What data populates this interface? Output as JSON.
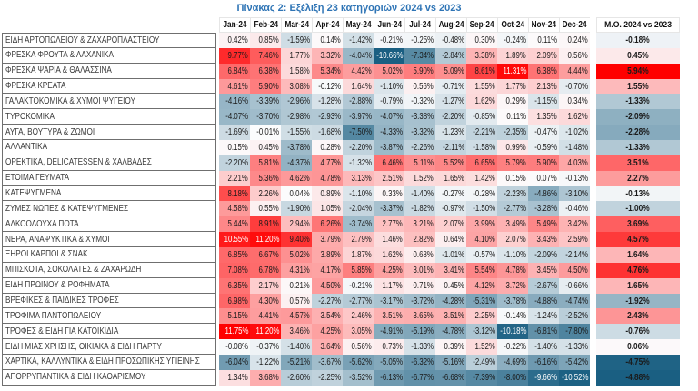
{
  "title": "Πίνακας 2: Εξέλιξη 23 κατηγοριών 2024 vs 2023",
  "chart_data": {
    "type": "heatmap",
    "title": "Πίνακας 2: Εξέλιξη 23 κατηγοριών 2024 vs 2023",
    "title_color": "#2E74B5",
    "value_format": "percent_2dp",
    "columns": [
      "Jan-24",
      "Feb-24",
      "Mar-24",
      "Apr-24",
      "May-24",
      "Jun-24",
      "Jul-24",
      "Aug-24",
      "Sep-24",
      "Oct-24",
      "Nov-24",
      "Dec-24"
    ],
    "avg_column_label": "Μ.Ο. 2024 vs 2023",
    "color_scale": {
      "positive_color": "#FF0000",
      "negative_color": "#1A5F82",
      "neutral_color": "#FCFCFD",
      "monthly": {
        "min": -10.66,
        "max": 11.75
      },
      "avg": {
        "min": -4.88,
        "max": 5.94
      }
    },
    "rows": [
      {
        "label": "ΕΙΔΗ ΑΡΤΟΠΩΛΕΙΟΥ & ΖΑΧΑΡΟΠΛΑΣΤΕΙΟΥ",
        "values": [
          0.42,
          0.85,
          -1.59,
          0.14,
          -1.42,
          -0.21,
          -0.25,
          -0.48,
          0.3,
          -0.24,
          0.11,
          0.24
        ],
        "avg": -0.18
      },
      {
        "label": "ΦΡΕΣΚΑ ΦΡΟΥΤΑ & ΛΑΧΑΝΙΚΑ",
        "values": [
          9.77,
          7.46,
          1.77,
          3.32,
          -4.04,
          -10.66,
          -7.34,
          -2.84,
          3.38,
          1.89,
          2.09,
          0.56
        ],
        "avg": 0.45
      },
      {
        "label": "ΦΡΕΣΚΑ ΨΑΡΙΑ & ΘΑΛΑΣΣΙΝΑ",
        "values": [
          6.84,
          6.38,
          1.58,
          5.34,
          4.42,
          5.02,
          5.9,
          5.09,
          8.61,
          11.31,
          6.38,
          4.44
        ],
        "avg": 5.94
      },
      {
        "label": "ΦΡΕΣΚΑ ΚΡΕΑΤΑ",
        "values": [
          4.61,
          5.9,
          3.08,
          -0.12,
          1.64,
          -1.1,
          0.56,
          -0.71,
          1.55,
          1.77,
          2.13,
          -0.7
        ],
        "avg": 1.55
      },
      {
        "label": "ΓΑΛΑΚΤΟΚΟΜΙΚΑ & ΧΥΜΟΙ ΨΥΓΕΙΟΥ",
        "values": [
          -4.16,
          -3.39,
          -2.96,
          -1.28,
          -2.88,
          -0.79,
          -0.32,
          -1.27,
          1.62,
          0.29,
          -1.15,
          0.34
        ],
        "avg": -1.33
      },
      {
        "label": "ΤΥΡΟΚΟΜΙΚΑ",
        "values": [
          -4.07,
          -3.7,
          -2.98,
          -2.93,
          -3.97,
          -4.07,
          -3.38,
          -2.2,
          -0.85,
          0.11,
          1.35,
          1.62
        ],
        "avg": -2.09
      },
      {
        "label": "ΑΥΓΑ, ΒΟΥΤΥΡΑ & ΖΩΜΟΙ",
        "values": [
          -1.69,
          -0.01,
          -1.55,
          -1.68,
          -7.5,
          -4.33,
          -3.32,
          -1.23,
          -2.21,
          -2.35,
          -0.47,
          -1.02
        ],
        "avg": -2.28
      },
      {
        "label": "ΑΛΛΑΝΤΙΚΑ",
        "values": [
          0.15,
          0.45,
          -3.78,
          0.28,
          -2.2,
          -3.87,
          -2.26,
          -2.11,
          -1.58,
          0.99,
          -0.59,
          -1.48
        ],
        "avg": -1.33
      },
      {
        "label": "ΟΡΕΚΤΙΚΑ, DELICATESSEN & ΧΑΛΒΑΔΕΣ",
        "values": [
          -2.2,
          5.81,
          -4.37,
          4.77,
          -1.32,
          6.46,
          5.11,
          5.52,
          6.65,
          5.79,
          5.9,
          4.03
        ],
        "avg": 3.51
      },
      {
        "label": "ΕΤΟΙΜΑ ΓΕΥΜΑΤΑ",
        "values": [
          2.21,
          5.36,
          4.62,
          4.78,
          3.13,
          2.51,
          1.52,
          1.65,
          1.42,
          0.15,
          0.07,
          -0.13
        ],
        "avg": 2.27
      },
      {
        "label": "ΚΑΤΕΨΥΓΜΕΝΑ",
        "values": [
          8.18,
          2.26,
          0.04,
          0.89,
          -1.1,
          0.33,
          -1.4,
          -0.27,
          -0.28,
          -2.23,
          -4.86,
          -3.1
        ],
        "avg": -0.13
      },
      {
        "label": "ΖΥΜΕΣ ΝΩΠΕΣ & ΚΑΤΕΨΥΓΜΕΝΕΣ",
        "values": [
          4.58,
          0.55,
          -1.9,
          1.05,
          -2.04,
          -3.37,
          -1.82,
          -0.97,
          -1.5,
          -2.77,
          -3.28,
          -0.46
        ],
        "avg": -1.0
      },
      {
        "label": "ΑΛΚΟΟΛΟΥΧΑ ΠΟΤΑ",
        "values": [
          5.44,
          8.91,
          2.94,
          6.26,
          -3.74,
          2.77,
          3.21,
          2.07,
          3.99,
          3.49,
          5.49,
          3.42
        ],
        "avg": 3.69
      },
      {
        "label": "ΝΕΡΑ, ΑΝΑΨΥΚΤΙΚΑ & ΧΥΜΟΙ",
        "values": [
          10.55,
          11.2,
          9.4,
          3.79,
          2.79,
          1.46,
          2.82,
          0.64,
          4.1,
          2.07,
          3.43,
          2.59
        ],
        "avg": 4.57
      },
      {
        "label": "ΞΗΡΟΙ ΚΑΡΠΟΙ & ΣΝΑΚ",
        "values": [
          6.85,
          6.67,
          5.02,
          3.89,
          1.87,
          1.62,
          0.68,
          -1.01,
          -0.57,
          -1.1,
          -2.09,
          -2.14
        ],
        "avg": 1.64
      },
      {
        "label": "ΜΠΙΣΚΟΤΑ, ΣΟΚΟΛΑΤΕΣ & ΖΑΧΑΡΩΔΗ",
        "values": [
          7.08,
          6.78,
          4.31,
          4.17,
          5.85,
          4.25,
          3.01,
          3.41,
          5.54,
          4.78,
          3.45,
          4.5
        ],
        "avg": 4.76
      },
      {
        "label": "ΕΙΔΗ ΠΡΩΙΝΟΥ & ΡΟΦΗΜΑΤΑ",
        "values": [
          6.35,
          2.17,
          0.21,
          4.5,
          -0.21,
          1.17,
          0.71,
          0.45,
          4.12,
          3.72,
          -2.67,
          -0.66
        ],
        "avg": 1.65
      },
      {
        "label": "ΒΡΕΦΙΚΕΣ & ΠΑΙΔΙΚΕΣ ΤΡΟΦΕΣ",
        "values": [
          6.98,
          4.3,
          0.57,
          -2.27,
          -2.77,
          -3.17,
          -3.72,
          -4.28,
          -5.31,
          -3.78,
          -4.88,
          -4.74
        ],
        "avg": -1.92
      },
      {
        "label": "ΤΡΟΦΙΜΑ ΠΑΝΤΟΠΩΛΕΙΟΥ",
        "values": [
          5.15,
          4.41,
          4.57,
          3.54,
          2.46,
          3.51,
          3.65,
          3.51,
          2.25,
          -0.14,
          -1.24,
          -2.52
        ],
        "avg": 2.43
      },
      {
        "label": "ΤΡΟΦΕΣ & ΕΙΔΗ ΓΙΑ ΚΑΤΟΙΚΙΔΙΑ",
        "values": [
          11.75,
          11.2,
          3.46,
          4.25,
          3.05,
          -4.91,
          -5.19,
          -4.78,
          -3.12,
          -10.18,
          -6.81,
          -7.8
        ],
        "avg": -0.76
      },
      {
        "label": "ΕΙΔΗ ΜΙΑΣ ΧΡΗΣΗΣ, ΟΙΚΙΑΚΑ & ΕΙΔΗ ΠΑΡΤΥ",
        "values": [
          -0.08,
          -0.37,
          -1.4,
          3.64,
          0.56,
          0.73,
          -1.33,
          0.39,
          1.52,
          -0.22,
          -1.4,
          -1.33
        ],
        "avg": 0.06
      },
      {
        "label": "ΧΑΡΤΙΚΑ, ΚΑΛΛΥΝΤΙΚΑ & ΕΙΔΗ ΠΡΟΣΩΠΙΚΗΣ ΥΓΙΕΙΝΗΣ",
        "values": [
          -6.04,
          -1.22,
          -5.21,
          -3.67,
          -5.62,
          -5.05,
          -6.32,
          -5.16,
          -2.49,
          -4.69,
          -6.16,
          -5.42
        ],
        "avg": -4.75
      },
      {
        "label": "ΑΠΟΡΡΥΠΑΝΤΙΚΑ & ΕΙΔΗ ΚΑΘΑΡΙΣΜΟΥ",
        "values": [
          1.34,
          3.68,
          -2.6,
          -2.25,
          -3.52,
          -6.13,
          -6.77,
          -6.68,
          -7.39,
          -8.0,
          -9.66,
          -10.52
        ],
        "avg": -4.88
      }
    ]
  }
}
